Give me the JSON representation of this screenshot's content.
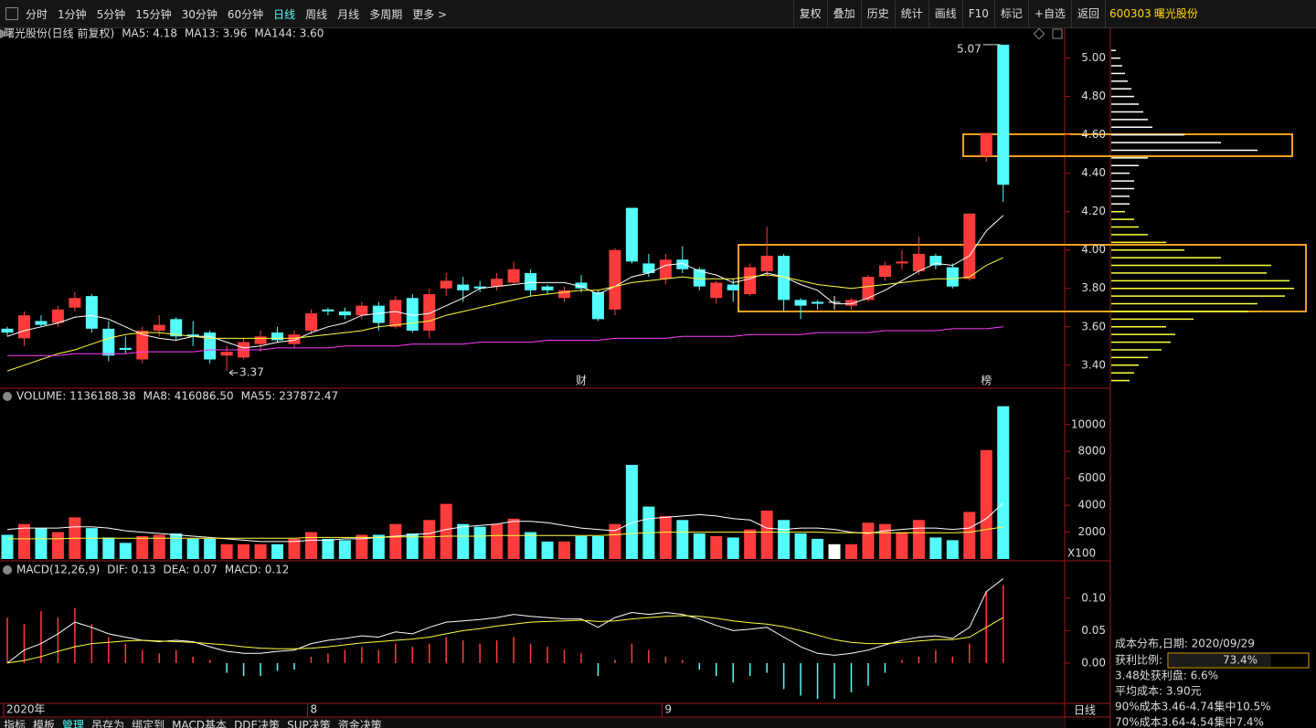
{
  "toolbar": {
    "periods": [
      "分时",
      "1分钟",
      "5分钟",
      "15分钟",
      "30分钟",
      "60分钟",
      "日线",
      "周线",
      "月线",
      "多周期",
      "更多 >"
    ],
    "active_period": 6,
    "buttons": [
      "复权",
      "叠加",
      "历史",
      "统计",
      "画线",
      "F10",
      "标记",
      "+自选",
      "返回"
    ]
  },
  "stock": {
    "code": "600303",
    "name": "曙光股份"
  },
  "period_label": "日线",
  "bottom_tabs": {
    "items": [
      "指标",
      "模板",
      "管理",
      "吊存为",
      "绑定到",
      "MACD基本",
      "DDE决策",
      "SUP决策",
      "资金决策"
    ],
    "active": 2
  },
  "chart_data": [
    {
      "type": "candlestick",
      "title": "曙光股份(日线 前复权)",
      "categories": [
        "2020年",
        null,
        null,
        null,
        null,
        null,
        null,
        null,
        null,
        null,
        null,
        null,
        null,
        null,
        null,
        null,
        null,
        null,
        "8",
        null,
        null,
        null,
        null,
        null,
        null,
        null,
        null,
        null,
        null,
        null,
        null,
        null,
        null,
        null,
        null,
        null,
        null,
        null,
        null,
        "9",
        null,
        null,
        null,
        null,
        null,
        null,
        null,
        null,
        null,
        null,
        null,
        null,
        null,
        null,
        null,
        null,
        null,
        null,
        null,
        null
      ],
      "open": [
        3.59,
        3.54,
        3.63,
        3.62,
        3.7,
        3.76,
        3.59,
        3.49,
        3.43,
        3.58,
        3.64,
        3.56,
        3.57,
        3.45,
        3.44,
        3.51,
        3.57,
        3.51,
        3.58,
        3.69,
        3.68,
        3.66,
        3.71,
        3.6,
        3.75,
        3.58,
        3.8,
        3.82,
        3.81,
        3.81,
        3.83,
        3.88,
        3.81,
        3.75,
        3.83,
        3.78,
        3.69,
        4.22,
        3.93,
        3.85,
        3.95,
        3.9,
        3.75,
        3.82,
        3.77,
        3.89,
        3.97,
        3.74,
        3.73,
        3.73,
        3.71,
        3.74,
        3.86,
        3.93,
        3.89,
        3.97,
        3.91,
        3.85,
        4.49,
        5.07
      ],
      "high": [
        3.6,
        3.68,
        3.66,
        3.71,
        3.78,
        3.77,
        3.63,
        3.55,
        3.6,
        3.66,
        3.65,
        3.63,
        3.58,
        3.5,
        3.54,
        3.58,
        3.6,
        3.58,
        3.69,
        3.7,
        3.7,
        3.73,
        3.73,
        3.76,
        3.77,
        3.8,
        3.88,
        3.86,
        3.84,
        3.88,
        3.94,
        3.9,
        3.82,
        3.81,
        3.87,
        3.79,
        4.01,
        4.22,
        3.98,
        3.98,
        4.02,
        3.91,
        3.84,
        3.85,
        3.93,
        4.12,
        3.98,
        3.75,
        3.74,
        3.76,
        3.75,
        3.87,
        3.94,
        4.0,
        4.07,
        3.98,
        3.93,
        4.19,
        4.61,
        5.07
      ],
      "low": [
        3.55,
        3.5,
        3.6,
        3.6,
        3.68,
        3.57,
        3.42,
        3.46,
        3.41,
        3.55,
        3.53,
        3.5,
        3.41,
        3.37,
        3.43,
        3.47,
        3.52,
        3.49,
        3.56,
        3.66,
        3.64,
        3.64,
        3.58,
        3.59,
        3.57,
        3.54,
        3.76,
        3.73,
        3.78,
        3.79,
        3.82,
        3.76,
        3.77,
        3.73,
        3.78,
        3.63,
        3.66,
        3.93,
        3.86,
        3.82,
        3.88,
        3.79,
        3.72,
        3.73,
        3.76,
        3.86,
        3.68,
        3.64,
        3.69,
        3.69,
        3.69,
        3.73,
        3.84,
        3.9,
        3.87,
        3.9,
        3.8,
        3.84,
        4.46,
        4.25
      ],
      "close": [
        3.57,
        3.66,
        3.61,
        3.69,
        3.75,
        3.59,
        3.45,
        3.48,
        3.58,
        3.61,
        3.55,
        3.55,
        3.43,
        3.47,
        3.52,
        3.55,
        3.53,
        3.56,
        3.67,
        3.68,
        3.66,
        3.71,
        3.62,
        3.74,
        3.58,
        3.77,
        3.84,
        3.79,
        3.8,
        3.85,
        3.9,
        3.79,
        3.79,
        3.79,
        3.8,
        3.64,
        4.0,
        3.94,
        3.88,
        3.95,
        3.9,
        3.81,
        3.83,
        3.79,
        3.91,
        3.97,
        3.74,
        3.71,
        3.72,
        3.73,
        3.74,
        3.86,
        3.92,
        3.94,
        3.98,
        3.92,
        3.81,
        4.19,
        4.61,
        4.34
      ],
      "up_color": "#ff3c3c",
      "down_color": "#54fcfc",
      "flat_color": "#ffffff",
      "series": [
        {
          "label": "MA5: 4.18",
          "color": "#ffffff",
          "values": [
            3.55,
            3.58,
            3.6,
            3.62,
            3.65,
            3.66,
            3.64,
            3.6,
            3.56,
            3.54,
            3.53,
            3.55,
            3.55,
            3.52,
            3.49,
            3.5,
            3.52,
            3.53,
            3.57,
            3.6,
            3.62,
            3.66,
            3.67,
            3.68,
            3.66,
            3.67,
            3.71,
            3.75,
            3.8,
            3.81,
            3.82,
            3.83,
            3.83,
            3.83,
            3.81,
            3.77,
            3.81,
            3.86,
            3.88,
            3.92,
            3.93,
            3.89,
            3.87,
            3.83,
            3.85,
            3.88,
            3.86,
            3.82,
            3.79,
            3.72,
            3.72,
            3.75,
            3.79,
            3.84,
            3.89,
            3.93,
            3.92,
            3.97,
            4.1,
            4.18
          ]
        },
        {
          "label": "MA13: 3.96",
          "color": "#ffff3c",
          "values": [
            3.37,
            3.4,
            3.43,
            3.46,
            3.48,
            3.51,
            3.54,
            3.56,
            3.57,
            3.57,
            3.56,
            3.55,
            3.54,
            3.54,
            3.54,
            3.54,
            3.54,
            3.54,
            3.55,
            3.56,
            3.57,
            3.58,
            3.6,
            3.61,
            3.62,
            3.63,
            3.66,
            3.68,
            3.7,
            3.72,
            3.74,
            3.76,
            3.77,
            3.78,
            3.79,
            3.79,
            3.81,
            3.83,
            3.84,
            3.85,
            3.86,
            3.85,
            3.85,
            3.85,
            3.86,
            3.87,
            3.86,
            3.84,
            3.82,
            3.81,
            3.8,
            3.81,
            3.82,
            3.83,
            3.84,
            3.85,
            3.85,
            3.86,
            3.92,
            3.96
          ]
        },
        {
          "label": "MA144: 3.60",
          "color": "#ff3cff",
          "values": [
            3.45,
            3.45,
            3.45,
            3.45,
            3.46,
            3.46,
            3.46,
            3.46,
            3.47,
            3.47,
            3.47,
            3.47,
            3.48,
            3.48,
            3.48,
            3.48,
            3.49,
            3.49,
            3.49,
            3.49,
            3.5,
            3.5,
            3.5,
            3.5,
            3.51,
            3.51,
            3.51,
            3.51,
            3.52,
            3.52,
            3.52,
            3.52,
            3.53,
            3.53,
            3.53,
            3.53,
            3.54,
            3.54,
            3.54,
            3.54,
            3.55,
            3.55,
            3.55,
            3.55,
            3.56,
            3.56,
            3.56,
            3.56,
            3.57,
            3.57,
            3.57,
            3.57,
            3.58,
            3.58,
            3.58,
            3.58,
            3.59,
            3.59,
            3.59,
            3.6
          ]
        }
      ],
      "annotations": [
        {
          "text": "5.07",
          "index": 59,
          "at": "high",
          "side": "left"
        },
        {
          "text": "3.37",
          "index": 13,
          "at": "low",
          "side": "right"
        }
      ],
      "markers": [
        {
          "text": "财",
          "index": 34,
          "color": "#54a8ff"
        },
        {
          "text": "榜",
          "index": 58,
          "color": "#ffd080"
        }
      ],
      "ylim": [
        3.28,
        5.16
      ],
      "yticks": [
        {
          "value": 5,
          "label": "5.00"
        },
        {
          "value": 4.8,
          "label": "4.80"
        },
        {
          "value": 4.6,
          "label": "4.60"
        },
        {
          "value": 4.4,
          "label": "4.40"
        },
        {
          "value": 4.2,
          "label": "4.20"
        },
        {
          "value": 4,
          "label": "4.00"
        },
        {
          "value": 3.8,
          "label": "3.80"
        },
        {
          "value": 3.6,
          "label": "3.60"
        },
        {
          "value": 3.4,
          "label": "3.40"
        }
      ]
    },
    {
      "type": "bar",
      "title": "VOLUME: 1136188.38",
      "unit_label": "X100",
      "values": [
        1800,
        2600,
        2300,
        2000,
        3100,
        2300,
        1600,
        1200,
        1700,
        1800,
        1900,
        1500,
        1500,
        1100,
        1100,
        1100,
        1100,
        1500,
        2000,
        1500,
        1400,
        1800,
        1800,
        2600,
        1900,
        2900,
        4100,
        2600,
        2400,
        2600,
        3000,
        2000,
        1300,
        1300,
        1700,
        1700,
        2600,
        7000,
        3900,
        3200,
        2900,
        1900,
        1700,
        1600,
        2200,
        3600,
        2900,
        1900,
        1500,
        1100,
        1100,
        2700,
        2600,
        2000,
        2900,
        1600,
        1400,
        3500,
        8100,
        11362
      ],
      "series": [
        {
          "label": "MA8: 416086.50",
          "color": "#ffffff",
          "values": [
            2200,
            2300,
            2300,
            2300,
            2400,
            2400,
            2300,
            2100,
            2000,
            1900,
            1800,
            1700,
            1600,
            1500,
            1400,
            1300,
            1300,
            1300,
            1400,
            1400,
            1500,
            1500,
            1600,
            1700,
            1800,
            1900,
            2200,
            2400,
            2500,
            2600,
            2800,
            2800,
            2700,
            2500,
            2300,
            2200,
            2100,
            2700,
            3000,
            3100,
            3200,
            3300,
            3200,
            3000,
            2900,
            2300,
            2200,
            2300,
            2300,
            2200,
            2000,
            1900,
            2100,
            2200,
            2300,
            2300,
            2200,
            2300,
            3000,
            4161
          ]
        },
        {
          "label": "MA55: 237872.47",
          "color": "#ffff3c",
          "values": [
            1500,
            1500,
            1500,
            1500,
            1550,
            1550,
            1550,
            1550,
            1550,
            1550,
            1550,
            1550,
            1550,
            1550,
            1550,
            1550,
            1550,
            1550,
            1600,
            1600,
            1600,
            1600,
            1600,
            1650,
            1650,
            1650,
            1700,
            1700,
            1700,
            1750,
            1750,
            1750,
            1750,
            1750,
            1750,
            1750,
            1800,
            1900,
            1950,
            2000,
            2000,
            2000,
            2000,
            2000,
            2000,
            2000,
            2000,
            2000,
            2000,
            1950,
            1950,
            1950,
            1950,
            1950,
            1950,
            1950,
            1950,
            2000,
            2200,
            2379
          ]
        }
      ],
      "ylim": [
        0,
        12700
      ],
      "yticks": [
        10000,
        8000,
        6000,
        4000,
        2000
      ]
    },
    {
      "type": "macd",
      "title": "MACD(12,26,9)",
      "label": "MACD: 0.12",
      "label_color": "#ff3cff",
      "values": [
        0.07,
        0.06,
        0.08,
        0.07,
        0.085,
        0.06,
        0.04,
        0.03,
        0.02,
        0.015,
        0.02,
        0.01,
        0.005,
        -0.015,
        -0.02,
        -0.02,
        -0.012,
        -0.01,
        0.01,
        0.015,
        0.02,
        0.025,
        0.02,
        0.03,
        0.025,
        0.03,
        0.04,
        0.035,
        0.03,
        0.035,
        0.04,
        0.03,
        0.025,
        0.02,
        0.015,
        -0.02,
        0.005,
        0.03,
        0.02,
        0.01,
        0.005,
        -0.01,
        -0.02,
        -0.03,
        -0.02,
        -0.015,
        -0.04,
        -0.05,
        -0.055,
        -0.055,
        -0.045,
        -0.035,
        -0.015,
        0.005,
        0.01,
        0.02,
        0.01,
        0.03,
        0.11,
        0.12
      ],
      "series": [
        {
          "label": "DIF: 0.13",
          "color": "#ffffff",
          "values": [
            0.0,
            0.02,
            0.03,
            0.045,
            0.063,
            0.055,
            0.045,
            0.04,
            0.035,
            0.033,
            0.035,
            0.033,
            0.025,
            0.018,
            0.015,
            0.015,
            0.018,
            0.02,
            0.03,
            0.035,
            0.038,
            0.042,
            0.04,
            0.048,
            0.045,
            0.055,
            0.063,
            0.065,
            0.067,
            0.07,
            0.075,
            0.072,
            0.07,
            0.068,
            0.068,
            0.055,
            0.07,
            0.078,
            0.075,
            0.078,
            0.075,
            0.068,
            0.058,
            0.05,
            0.052,
            0.055,
            0.04,
            0.025,
            0.015,
            0.012,
            0.015,
            0.02,
            0.028,
            0.035,
            0.04,
            0.042,
            0.038,
            0.055,
            0.11,
            0.13
          ]
        },
        {
          "label": "DEA: 0.07",
          "color": "#ffff3c",
          "values": [
            0.0,
            0.004,
            0.01,
            0.018,
            0.025,
            0.03,
            0.032,
            0.034,
            0.035,
            0.034,
            0.033,
            0.032,
            0.03,
            0.028,
            0.025,
            0.023,
            0.022,
            0.022,
            0.023,
            0.025,
            0.028,
            0.031,
            0.033,
            0.035,
            0.037,
            0.04,
            0.045,
            0.05,
            0.053,
            0.057,
            0.06,
            0.063,
            0.064,
            0.065,
            0.066,
            0.064,
            0.065,
            0.068,
            0.07,
            0.072,
            0.073,
            0.072,
            0.069,
            0.065,
            0.062,
            0.06,
            0.056,
            0.05,
            0.043,
            0.036,
            0.032,
            0.03,
            0.03,
            0.032,
            0.034,
            0.036,
            0.036,
            0.04,
            0.055,
            0.07
          ]
        }
      ],
      "ylim": [
        -0.062,
        0.156
      ],
      "yticks": [
        {
          "value": 0.1,
          "label": "0.10"
        },
        {
          "value": 0.05,
          "label": "0.05"
        },
        {
          "value": 0,
          "label": "0.00"
        }
      ]
    },
    {
      "type": "cost_distribution",
      "series": [
        {
          "color": "#ffff3c",
          "prices": [
            3.32,
            3.36,
            3.4,
            3.44,
            3.48,
            3.52,
            3.56,
            3.6,
            3.64,
            3.68,
            3.72,
            3.76,
            3.8,
            3.84,
            3.88,
            3.92,
            3.96,
            4.0,
            4.04,
            4.08,
            4.12,
            4.16,
            4.2
          ],
          "values": [
            20,
            25,
            30,
            40,
            55,
            65,
            70,
            60,
            90,
            150,
            160,
            190,
            200,
            195,
            170,
            175,
            120,
            80,
            60,
            40,
            30,
            25,
            15
          ]
        },
        {
          "color": "#ffffff",
          "prices": [
            4.24,
            4.28,
            4.32,
            4.36,
            4.4,
            4.44,
            4.48,
            4.52,
            4.56,
            4.6,
            4.64,
            4.68,
            4.72,
            4.76,
            4.8,
            4.84,
            4.88,
            4.92,
            4.96,
            5.0,
            5.04
          ],
          "values": [
            20,
            20,
            25,
            25,
            20,
            30,
            40,
            160,
            120,
            80,
            45,
            40,
            35,
            30,
            25,
            22,
            18,
            15,
            12,
            10,
            5
          ]
        }
      ]
    }
  ],
  "cost_info": {
    "date_line": "成本分布,日期: 2020/09/29",
    "profit_label": "获利比例:",
    "profit_ratio": 73.4,
    "profit_ratio_label": "73.4%",
    "profit_xlim": [
      0,
      100
    ],
    "lines": [
      "3.48处获利盘: 6.6%",
      "平均成本: 3.90元",
      "90%成本3.46-4.74集中10.5%",
      "70%成本3.64-4.54集中7.4%"
    ]
  }
}
